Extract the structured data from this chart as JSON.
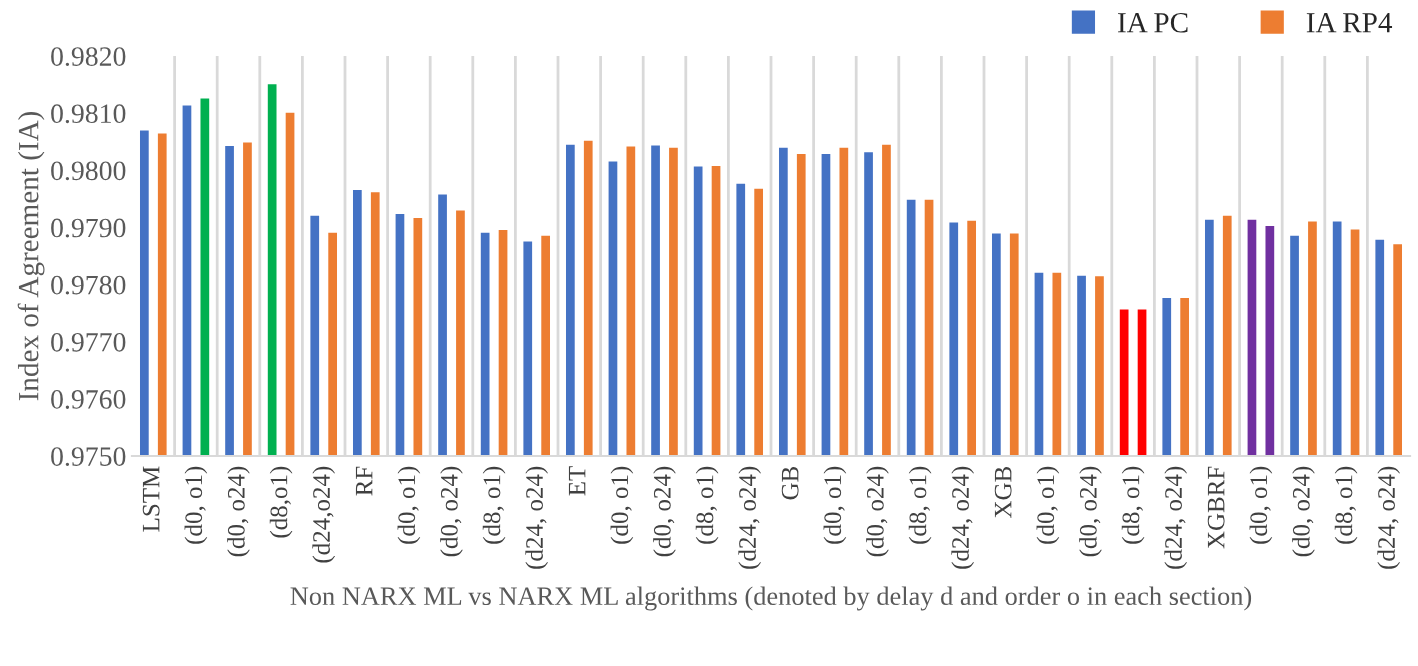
{
  "chart_data": {
    "type": "bar",
    "ylabel": "Index of Agreement (IA)",
    "xlabel": "Non NARX ML vs NARX ML algorithms (denoted by delay d and order o in each section)",
    "categories": [
      "LSTM",
      "(d0, o1)",
      "(d0, o24)",
      "(d8,o1)",
      "(d24,o24)",
      "RF",
      "(d0, o1)",
      "(d0, o24)",
      "(d8, o1)",
      "(d24, o24)",
      "ET",
      "(d0, o1)",
      "(d0, o24)",
      "(d8, o1)",
      "(d24, o24)",
      "GB",
      "(d0, o1)",
      "(d0, o24)",
      "(d8, o1)",
      "(d24, o24)",
      "XGB",
      "(d0, o1)",
      "(d0, o24)",
      "(d8, o1)",
      "(d24, o24)",
      "XGBRF",
      "(d0, o1)",
      "(d0, o24)",
      "(d8, o1)",
      "(d24, o24)"
    ],
    "series": [
      {
        "name": "IA PC",
        "color": "#4472c4",
        "colors": [
          "#4472c4",
          "#4472c4",
          "#4472c4",
          "#00b050",
          "#4472c4",
          "#4472c4",
          "#4472c4",
          "#4472c4",
          "#4472c4",
          "#4472c4",
          "#4472c4",
          "#4472c4",
          "#4472c4",
          "#4472c4",
          "#4472c4",
          "#4472c4",
          "#4472c4",
          "#4472c4",
          "#4472c4",
          "#4472c4",
          "#4472c4",
          "#4472c4",
          "#4472c4",
          "#ff0000",
          "#4472c4",
          "#4472c4",
          "#7030a0",
          "#4472c4",
          "#4472c4",
          "#4472c4"
        ],
        "values": [
          0.98072,
          0.98116,
          0.98045,
          0.98153,
          0.97923,
          0.97968,
          0.97926,
          0.9796,
          0.97893,
          0.97878,
          0.98047,
          0.98018,
          0.98046,
          0.98009,
          0.97979,
          0.98042,
          0.98031,
          0.98034,
          0.97951,
          0.97911,
          0.97892,
          0.97823,
          0.97818,
          0.97759,
          0.97779,
          0.97916,
          0.97916,
          0.97888,
          0.97913,
          0.97881
        ]
      },
      {
        "name": "IA RP4",
        "color": "#ed7d31",
        "colors": [
          "#ed7d31",
          "#00b050",
          "#ed7d31",
          "#ed7d31",
          "#ed7d31",
          "#ed7d31",
          "#ed7d31",
          "#ed7d31",
          "#ed7d31",
          "#ed7d31",
          "#ed7d31",
          "#ed7d31",
          "#ed7d31",
          "#ed7d31",
          "#ed7d31",
          "#ed7d31",
          "#ed7d31",
          "#ed7d31",
          "#ed7d31",
          "#ed7d31",
          "#ed7d31",
          "#ed7d31",
          "#ed7d31",
          "#ff0000",
          "#ed7d31",
          "#ed7d31",
          "#7030a0",
          "#ed7d31",
          "#ed7d31",
          "#ed7d31"
        ],
        "values": [
          0.98067,
          0.98128,
          0.98051,
          0.98103,
          0.97893,
          0.97964,
          0.97919,
          0.97932,
          0.97898,
          0.97888,
          0.98054,
          0.98044,
          0.98042,
          0.9801,
          0.9797,
          0.98031,
          0.98042,
          0.98047,
          0.97951,
          0.97914,
          0.97892,
          0.97823,
          0.97817,
          0.97759,
          0.97779,
          0.97923,
          0.97905,
          0.97913,
          0.97899,
          0.97873
        ]
      }
    ],
    "ylim": [
      0.975,
      0.982
    ],
    "yticks": [
      {
        "value": 0.975,
        "label": "0.9750"
      },
      {
        "value": 0.976,
        "label": "0.9760"
      },
      {
        "value": 0.977,
        "label": "0.9770"
      },
      {
        "value": 0.978,
        "label": "0.9780"
      },
      {
        "value": 0.979,
        "label": "0.9790"
      },
      {
        "value": 0.98,
        "label": "0.9800"
      },
      {
        "value": 0.981,
        "label": "0.9810"
      },
      {
        "value": 0.982,
        "label": "0.9820"
      }
    ],
    "grid": "x",
    "legend": "top right"
  }
}
